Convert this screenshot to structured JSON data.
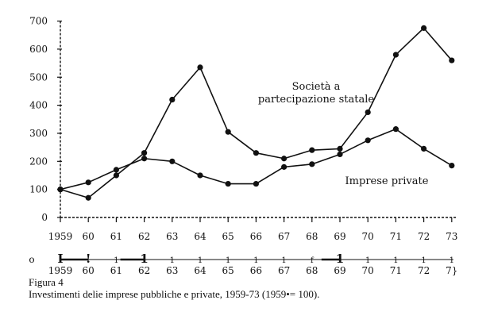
{
  "chart_data": {
    "type": "line",
    "x": [
      "1959",
      "60",
      "61",
      "62",
      "63",
      "64",
      "65",
      "66",
      "67",
      "68",
      "69",
      "70",
      "71",
      "72",
      "73"
    ],
    "y_ticks": [
      0,
      100,
      200,
      300,
      400,
      500,
      600,
      700
    ],
    "ylim": [
      0,
      700
    ],
    "series": [
      {
        "name": "Società a\npartecipazione statale",
        "values": [
          100,
          70,
          150,
          230,
          420,
          535,
          305,
          230,
          210,
          240,
          245,
          375,
          580,
          675,
          560
        ]
      },
      {
        "name": "Imprese private",
        "values": [
          100,
          125,
          170,
          210,
          200,
          150,
          120,
          120,
          180,
          190,
          225,
          275,
          315,
          245,
          185
        ]
      }
    ],
    "secondary_axis_labels": [
      "1959",
      "60",
      "61",
      "62",
      "63",
      "64",
      "65",
      "66",
      "67",
      "68",
      "69",
      "70",
      "71",
      "72",
      "7}"
    ],
    "secondary_axis_marks": [
      "I",
      "!",
      "1",
      "1",
      "1",
      "1",
      "1",
      "1",
      "1",
      "f",
      "1",
      "1",
      "1",
      "1",
      "1"
    ],
    "secondary_axis_start": "o",
    "grid": false,
    "legend": "inline labels"
  },
  "caption": {
    "title": "Figura 4",
    "text": "Investimenti delie imprese pubbliche e private, 1959-73 (1959•= 100)."
  }
}
